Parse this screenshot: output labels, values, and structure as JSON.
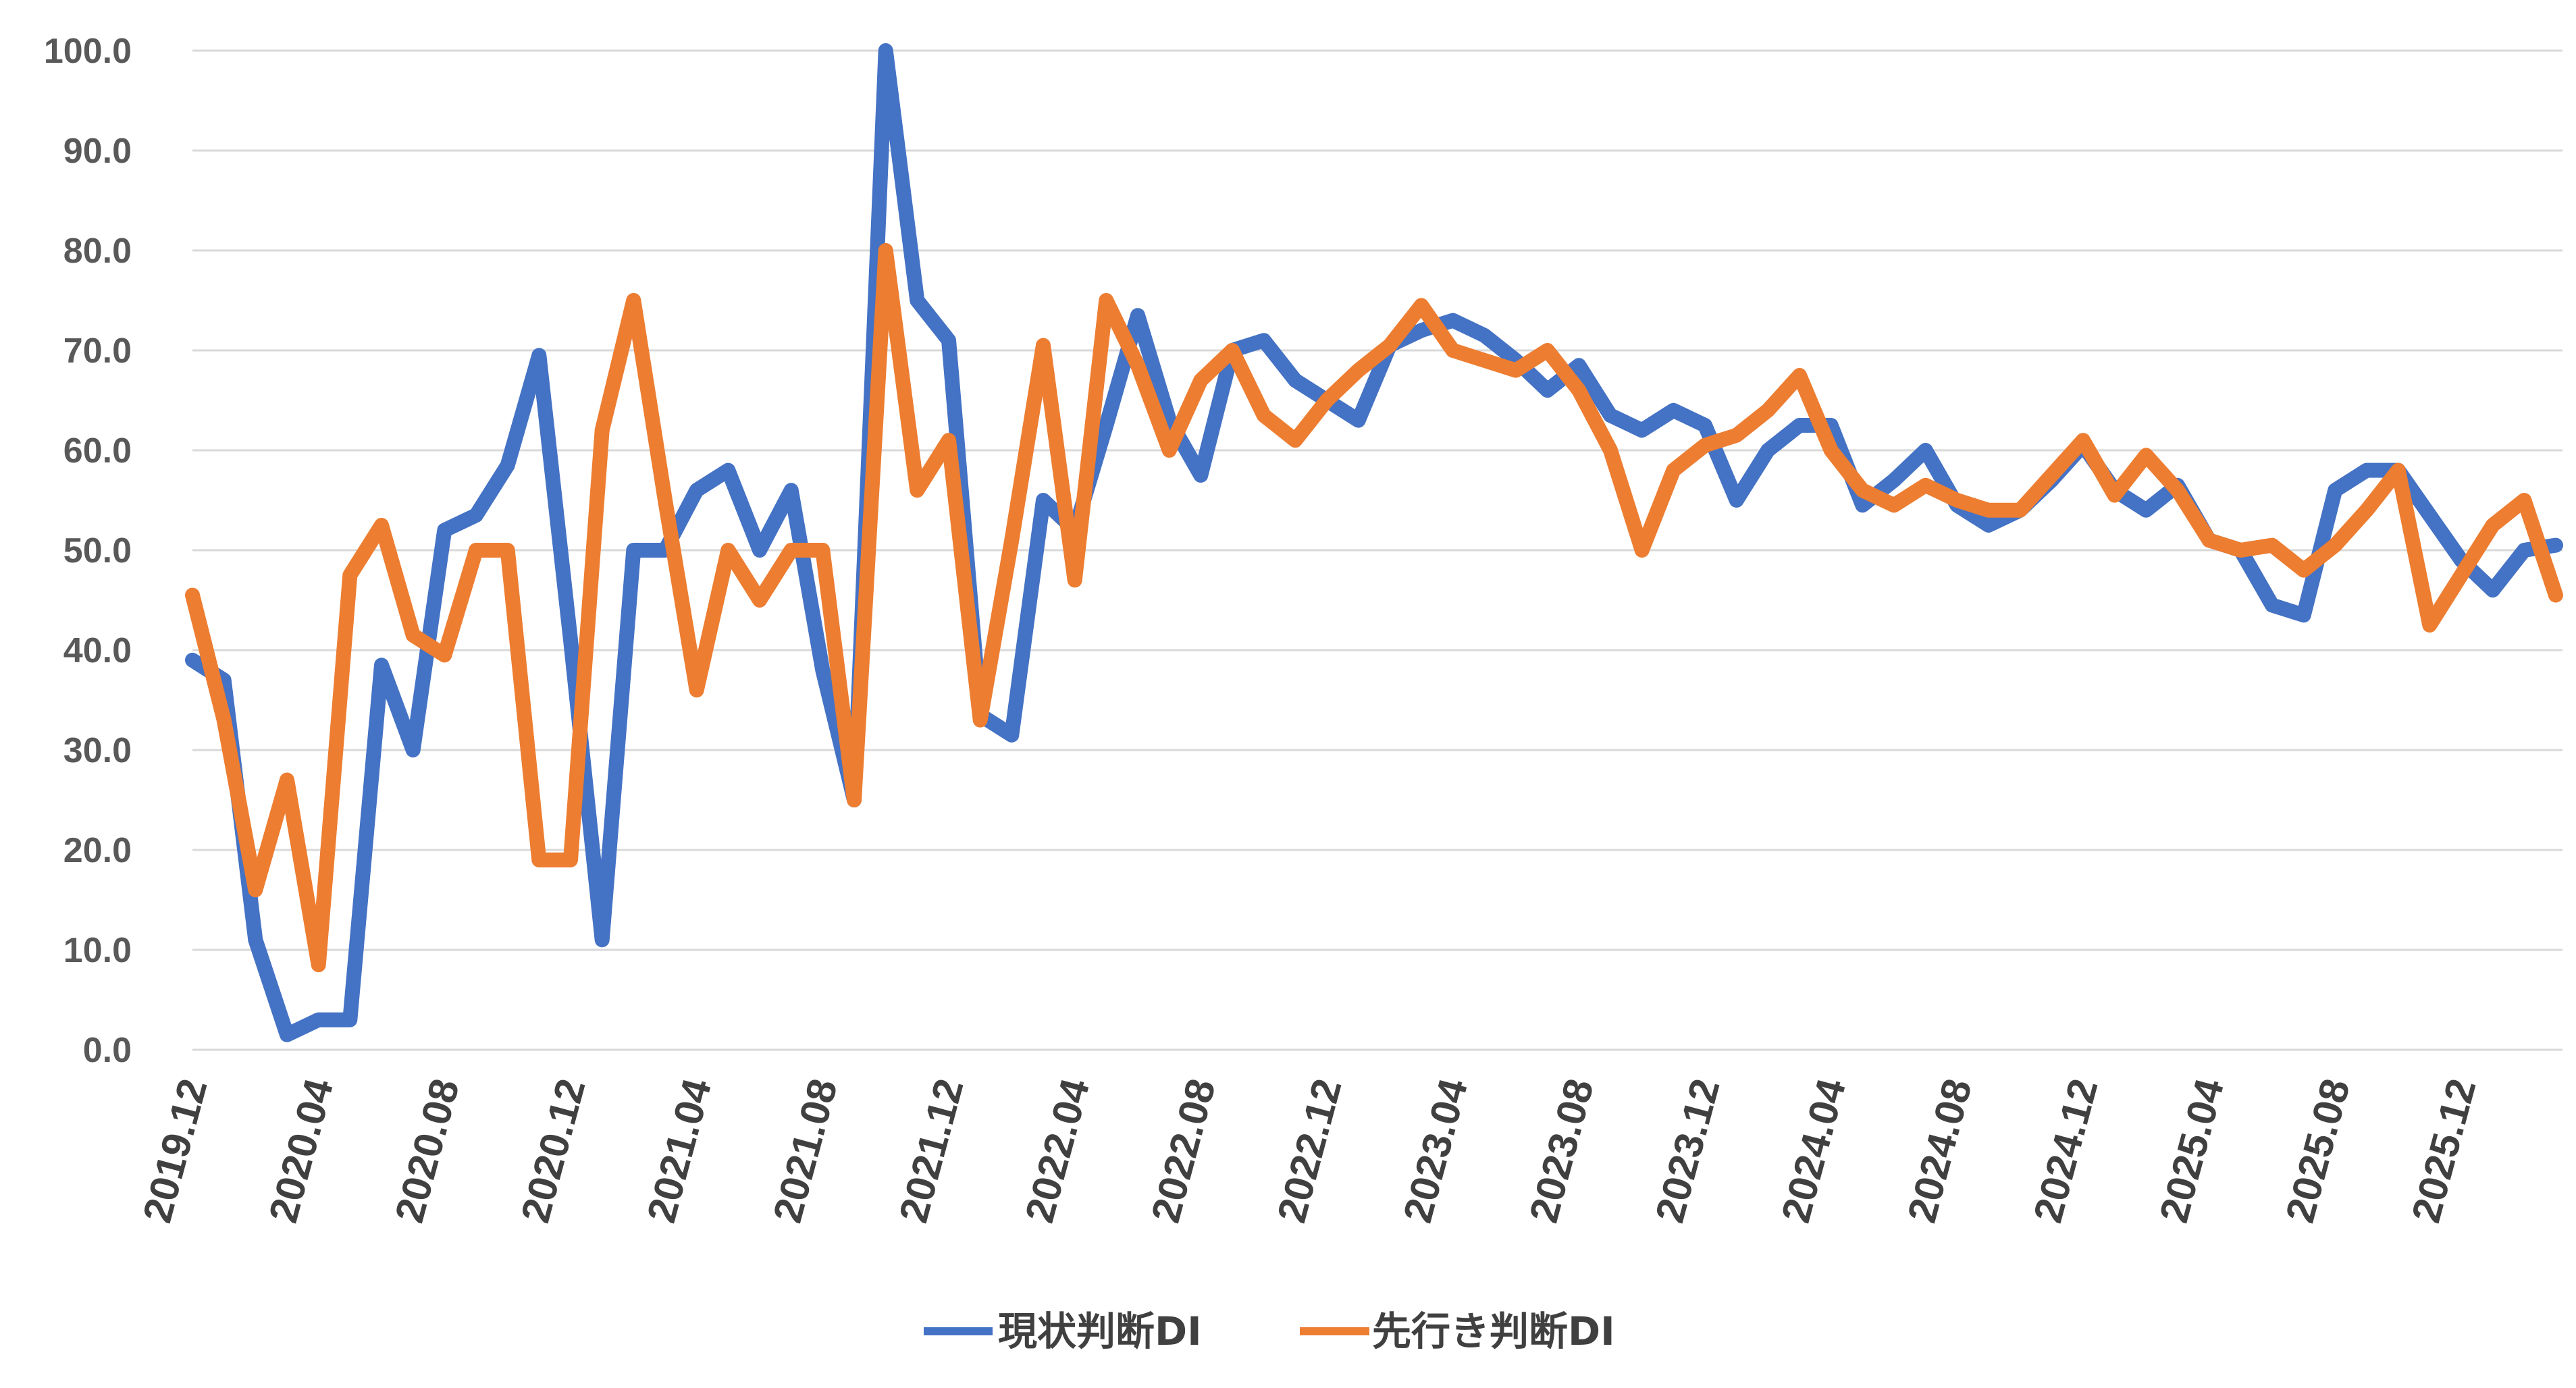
{
  "chart_data": {
    "type": "line",
    "title": "",
    "xlabel": "",
    "ylabel": "",
    "ylim": [
      0,
      100
    ],
    "y_ticks": [
      "0.0",
      "10.0",
      "20.0",
      "30.0",
      "40.0",
      "50.0",
      "60.0",
      "70.0",
      "80.0",
      "90.0",
      "100.0"
    ],
    "grid": true,
    "legend_position": "bottom",
    "x_tick_labels": [
      {
        "index": 0,
        "label": "2019.12"
      },
      {
        "index": 4,
        "label": "2020.04"
      },
      {
        "index": 8,
        "label": "2020.08"
      },
      {
        "index": 12,
        "label": "2020.12"
      },
      {
        "index": 16,
        "label": "2021.04"
      },
      {
        "index": 20,
        "label": "2021.08"
      },
      {
        "index": 24,
        "label": "2021.12"
      },
      {
        "index": 28,
        "label": "2022.04"
      },
      {
        "index": 32,
        "label": "2022.08"
      },
      {
        "index": 36,
        "label": "2022.12"
      },
      {
        "index": 40,
        "label": "2023.04"
      },
      {
        "index": 44,
        "label": "2023.08"
      },
      {
        "index": 48,
        "label": "2023.12"
      },
      {
        "index": 52,
        "label": "2024.04"
      },
      {
        "index": 56,
        "label": "2024.08"
      },
      {
        "index": 60,
        "label": "2024.12"
      },
      {
        "index": 64,
        "label": "2025.04"
      },
      {
        "index": 68,
        "label": "2025.08"
      },
      {
        "index": 72,
        "label": "2025.12"
      }
    ],
    "n_points": 76,
    "series": [
      {
        "name": "現状判断DI",
        "color": "#4472c4",
        "values": [
          39.0,
          37.0,
          11.0,
          1.5,
          3.0,
          3.0,
          38.5,
          30.0,
          52.0,
          53.5,
          58.5,
          69.5,
          41.0,
          11.0,
          50.0,
          50.0,
          56.0,
          58.0,
          50.0,
          56.0,
          38.0,
          25.0,
          100.0,
          75.0,
          71.0,
          33.5,
          31.5,
          55.0,
          52.0,
          62.5,
          73.5,
          63.0,
          57.5,
          70.0,
          71.0,
          67.0,
          65.0,
          63.0,
          70.5,
          72.0,
          73.0,
          71.5,
          69.0,
          66.0,
          68.5,
          63.5,
          62.0,
          64.0,
          62.5,
          55.0,
          60.0,
          62.5,
          62.5,
          54.5,
          57.0,
          60.0,
          54.5,
          52.5,
          54.0,
          57.0,
          60.5,
          56.0,
          54.0,
          56.5,
          51.0,
          50.0,
          44.5,
          43.5,
          56.0,
          58.0,
          58.0,
          53.5,
          49.0,
          46.0,
          50.0,
          50.5
        ]
      },
      {
        "name": "先行き判断DI",
        "color": "#ed7d31",
        "values": [
          45.5,
          33.0,
          16.0,
          27.0,
          8.5,
          47.5,
          52.5,
          41.5,
          39.5,
          50.0,
          50.0,
          19.0,
          19.0,
          62.0,
          75.0,
          55.0,
          36.0,
          50.0,
          45.0,
          50.0,
          50.0,
          25.0,
          80.0,
          56.0,
          61.0,
          33.0,
          51.0,
          70.5,
          47.0,
          75.0,
          68.5,
          60.0,
          67.0,
          70.0,
          63.5,
          61.0,
          65.0,
          68.0,
          70.5,
          74.5,
          70.0,
          69.0,
          68.0,
          70.0,
          66.0,
          60.0,
          50.0,
          58.0,
          60.5,
          61.5,
          64.0,
          67.5,
          60.0,
          56.0,
          54.5,
          56.5,
          55.0,
          54.0,
          54.0,
          57.5,
          61.0,
          55.5,
          59.5,
          56.0,
          51.0,
          50.0,
          50.5,
          48.0,
          50.5,
          54.0,
          58.0,
          42.5,
          47.5,
          52.5,
          55.0,
          45.5
        ]
      }
    ]
  },
  "legend": {
    "items": [
      {
        "label": "現状判断DI",
        "color": "#4472c4"
      },
      {
        "label": "先行き判断DI",
        "color": "#ed7d31"
      }
    ]
  }
}
